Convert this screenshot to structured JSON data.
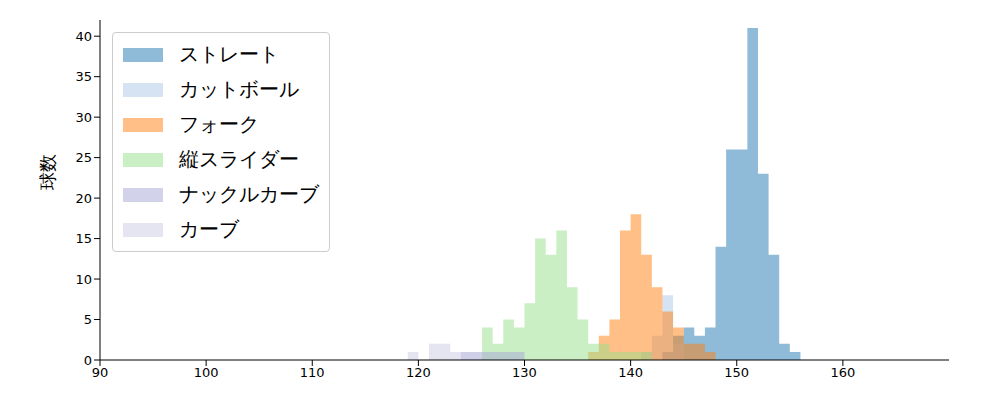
{
  "chart_data": {
    "type": "histogram",
    "y_label": "球数",
    "xlim": [
      90,
      170
    ],
    "xticks": [
      90,
      100,
      110,
      120,
      130,
      140,
      150,
      160
    ],
    "ylim": [
      0,
      42
    ],
    "yticks": [
      0,
      5,
      10,
      15,
      20,
      25,
      30,
      35,
      40
    ],
    "legend": "upper left",
    "bins": [
      119,
      120,
      121,
      122,
      123,
      124,
      125,
      126,
      127,
      128,
      129,
      130,
      131,
      132,
      133,
      134,
      135,
      136,
      137,
      138,
      139,
      140,
      141,
      142,
      143,
      144,
      145,
      146,
      147,
      148,
      149,
      150,
      151,
      152,
      153,
      154,
      155,
      156
    ],
    "series": [
      {
        "name": "ストレート",
        "color": "#1f77b4",
        "values": [
          0,
          0,
          0,
          0,
          0,
          0,
          0,
          0,
          0,
          0,
          0,
          0,
          0,
          0,
          0,
          0,
          0,
          0,
          0,
          0,
          0,
          0,
          0,
          0,
          1,
          3,
          4,
          3,
          4,
          14,
          26,
          26,
          41,
          23,
          13,
          2,
          1
        ]
      },
      {
        "name": "カットボール",
        "color": "#aec7e8",
        "values": [
          0,
          0,
          0,
          0,
          0,
          0,
          0,
          0,
          0,
          0,
          0,
          0,
          0,
          0,
          0,
          0,
          0,
          0,
          0,
          0,
          0,
          0,
          1,
          3,
          8,
          2,
          0,
          0,
          0,
          0,
          0,
          0,
          0,
          0,
          0,
          0,
          0
        ]
      },
      {
        "name": "フォーク",
        "color": "#ff7f0e",
        "values": [
          0,
          0,
          0,
          0,
          0,
          0,
          0,
          0,
          0,
          0,
          0,
          0,
          0,
          0,
          0,
          0,
          0,
          1,
          3,
          5,
          16,
          18,
          13,
          9,
          6,
          4,
          2,
          2,
          1,
          0,
          0,
          0,
          0,
          0,
          0,
          0,
          0
        ]
      },
      {
        "name": "縦スライダー",
        "color": "#98df8a",
        "values": [
          0,
          0,
          0,
          0,
          0,
          0,
          0,
          4,
          2,
          5,
          4,
          7,
          15,
          13,
          16,
          9,
          5,
          2,
          2,
          1,
          1,
          1,
          1,
          0,
          0,
          0,
          0,
          0,
          0,
          0,
          0,
          0,
          0,
          0,
          0,
          0,
          0
        ]
      },
      {
        "name": "ナックルカーブ",
        "color": "#a5a6d5",
        "values": [
          0,
          0,
          0,
          0,
          0,
          1,
          1,
          1,
          1,
          1,
          1,
          0,
          0,
          0,
          0,
          0,
          0,
          0,
          0,
          0,
          0,
          0,
          0,
          0,
          0,
          0,
          0,
          0,
          0,
          0,
          0,
          0,
          0,
          0,
          0,
          0,
          0
        ]
      },
      {
        "name": "カーブ",
        "color": "#cbcbe3",
        "values": [
          1,
          0,
          2,
          2,
          1,
          1,
          1,
          0,
          0,
          0,
          0,
          0,
          0,
          0,
          0,
          0,
          0,
          0,
          0,
          0,
          0,
          0,
          0,
          0,
          0,
          0,
          0,
          0,
          0,
          0,
          0,
          0,
          0,
          0,
          0,
          0,
          0
        ]
      }
    ]
  }
}
